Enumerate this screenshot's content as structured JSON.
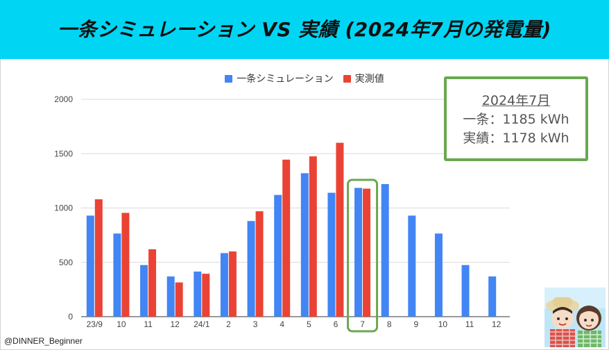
{
  "header": {
    "title": "一条シミュレーション VS 実績 (2024年7月の発電量)"
  },
  "legend": {
    "items": [
      {
        "label": "一条シミュレーション",
        "color": "#4285f4"
      },
      {
        "label": "実測値",
        "color": "#ea4335"
      }
    ]
  },
  "info_box": {
    "heading": "2024年7月",
    "line1": "一条：1185 kWh",
    "line2": "実績：1178 kWh"
  },
  "credit": "@DINNER_Beginner",
  "chart_data": {
    "type": "bar",
    "categories": [
      "23/9",
      "10",
      "11",
      "12",
      "24/1",
      "2",
      "3",
      "4",
      "5",
      "6",
      "7",
      "8",
      "9",
      "10",
      "11",
      "12"
    ],
    "series": [
      {
        "name": "一条シミュレーション",
        "color": "#4285f4",
        "values": [
          930,
          765,
          475,
          370,
          415,
          585,
          880,
          1120,
          1320,
          1140,
          1185,
          1220,
          930,
          765,
          475,
          370
        ]
      },
      {
        "name": "実測値",
        "color": "#ea4335",
        "values": [
          1080,
          955,
          620,
          315,
          395,
          600,
          970,
          1445,
          1475,
          1600,
          1178,
          null,
          null,
          null,
          null,
          null
        ]
      }
    ],
    "ylim": [
      0,
      2000
    ],
    "yticks": [
      0,
      500,
      1000,
      1500,
      2000
    ],
    "grid": true,
    "legend_position": "top-center",
    "highlight_category": "7",
    "highlight_color": "#6aa84f"
  }
}
